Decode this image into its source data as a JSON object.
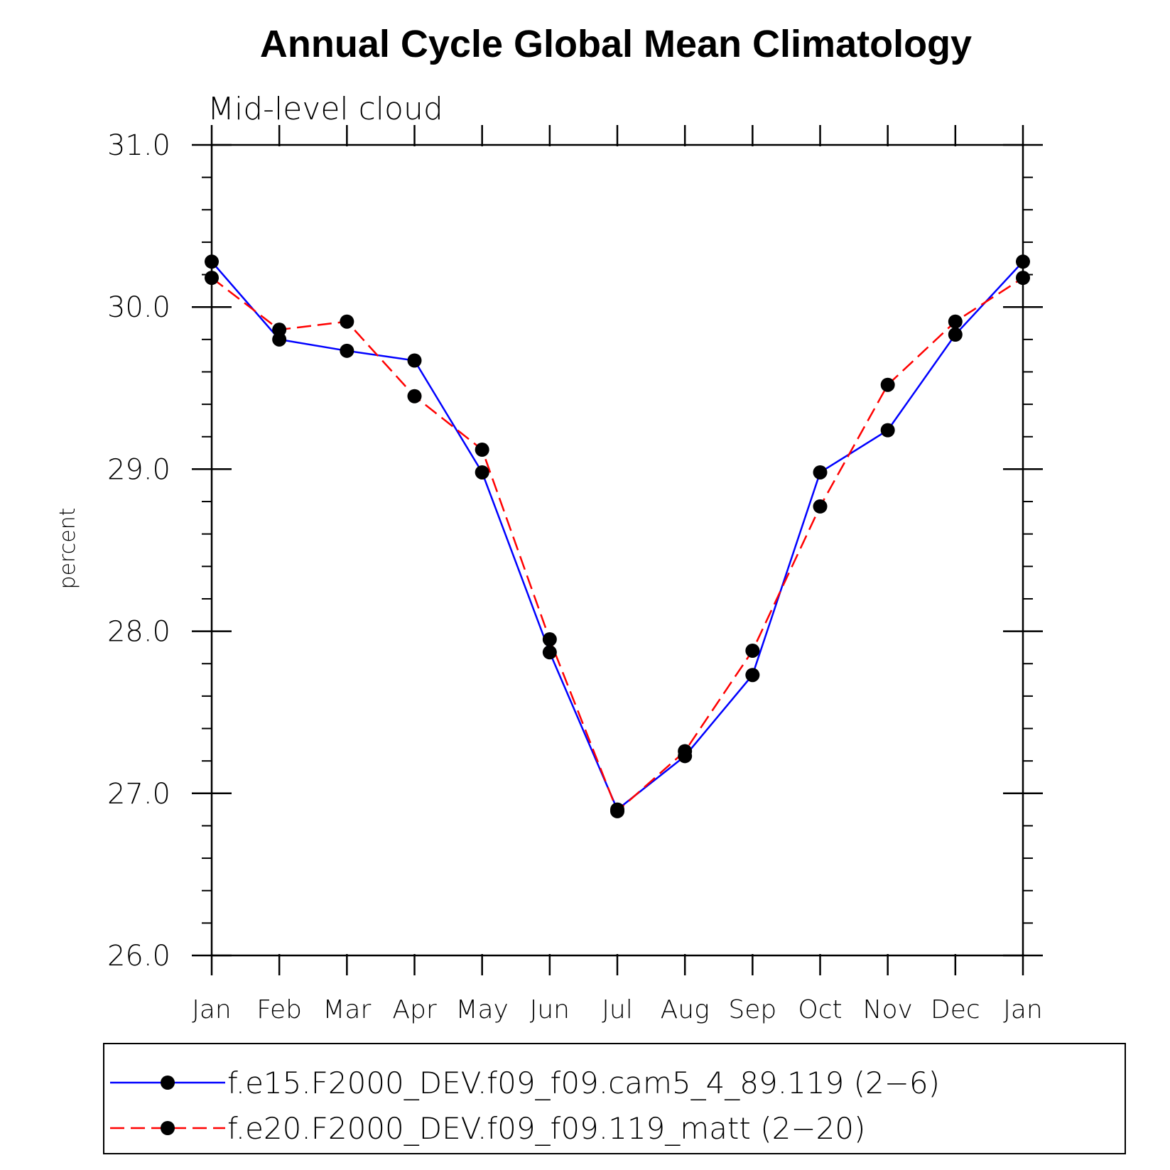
{
  "chart_data": {
    "type": "line",
    "title": "Annual Cycle Global Mean Climatology",
    "subtitle": "Mid-level cloud",
    "xlabel": "",
    "ylabel": "percent",
    "ylim": [
      26.0,
      31.0
    ],
    "y_major_ticks": [
      26.0,
      27.0,
      28.0,
      29.0,
      30.0,
      31.0
    ],
    "y_tick_labels": [
      "26.0",
      "27.0",
      "28.0",
      "29.0",
      "30.0",
      "31.0"
    ],
    "y_minor_step": 0.2,
    "categories": [
      "Jan",
      "Feb",
      "Mar",
      "Apr",
      "May",
      "Jun",
      "Jul",
      "Aug",
      "Sep",
      "Oct",
      "Nov",
      "Dec",
      "Jan"
    ],
    "grid": false,
    "legend_position": "bottom",
    "series": [
      {
        "name": "f.e15.F2000_DEV.f09_f09.cam5_4_89.119 (2−6)",
        "color": "#0000ff",
        "dash": "solid",
        "values": [
          30.28,
          29.8,
          29.73,
          29.67,
          28.98,
          27.87,
          26.9,
          27.23,
          27.73,
          28.98,
          29.24,
          29.83,
          30.28
        ]
      },
      {
        "name": "f.e20.F2000_DEV.f09_f09.119_matt (2−20)",
        "color": "#ff0000",
        "dash": "dashed",
        "values": [
          30.18,
          29.86,
          29.91,
          29.45,
          29.12,
          27.95,
          26.89,
          27.26,
          27.88,
          28.77,
          29.52,
          29.91,
          30.18
        ]
      }
    ]
  }
}
